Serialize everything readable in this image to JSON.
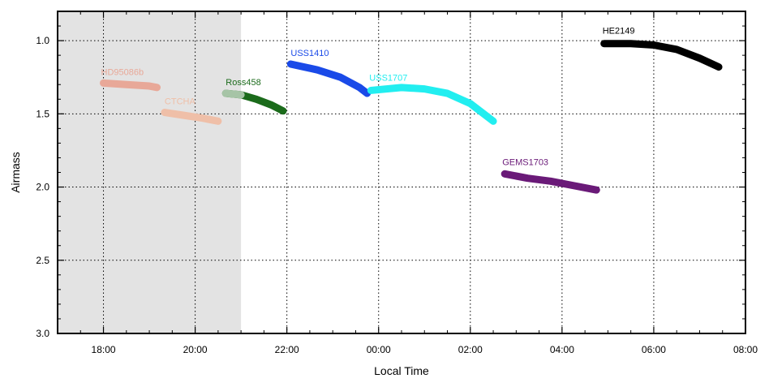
{
  "chart_data": {
    "type": "line",
    "xlabel": "Local Time",
    "ylabel": "Airmass",
    "x_unit": "hours",
    "xlim": [
      "17:00",
      "08:00"
    ],
    "ylim": [
      3.0,
      0.8
    ],
    "y_inverted": true,
    "grid": true,
    "grid_style": "dotted",
    "x_ticks": [
      "18:00",
      "20:00",
      "22:00",
      "00:00",
      "02:00",
      "04:00",
      "06:00",
      "08:00"
    ],
    "y_ticks": [
      "1.0",
      "1.5",
      "2.0",
      "2.5",
      "3.0"
    ],
    "shaded_region": {
      "x_start": "17:00",
      "x_end": "21:00",
      "color": "#e3e3e3"
    },
    "series": [
      {
        "name": "HD95086b",
        "color": "#e8a898",
        "x": [
          "18:00",
          "18:30",
          "19:00",
          "19:10"
        ],
        "y": [
          1.29,
          1.3,
          1.31,
          1.32
        ]
      },
      {
        "name": "CTCHA",
        "color": "#efbfa8",
        "x": [
          "19:20",
          "19:45",
          "20:10",
          "20:30"
        ],
        "y": [
          1.49,
          1.51,
          1.53,
          1.55
        ]
      },
      {
        "name": "Ross458",
        "color": "#1b6b1b",
        "x": [
          "20:40",
          "21:00",
          "21:20",
          "21:40",
          "21:55"
        ],
        "y": [
          1.36,
          1.37,
          1.4,
          1.44,
          1.48
        ]
      },
      {
        "name": "USS1410",
        "color": "#1a4ae8",
        "x": [
          "22:05",
          "22:40",
          "23:10",
          "23:35",
          "23:45"
        ],
        "y": [
          1.16,
          1.2,
          1.25,
          1.32,
          1.36
        ]
      },
      {
        "name": "USS1707",
        "color": "#22eef0",
        "x": [
          "23:50",
          "00:30",
          "01:00",
          "01:30",
          "02:00",
          "02:30"
        ],
        "y": [
          1.34,
          1.32,
          1.33,
          1.36,
          1.43,
          1.55
        ]
      },
      {
        "name": "GEMS1703",
        "color": "#6a1a78",
        "x": [
          "02:45",
          "03:15",
          "03:45",
          "04:15",
          "04:45"
        ],
        "y": [
          1.91,
          1.94,
          1.96,
          1.99,
          2.02
        ]
      },
      {
        "name": "HE2149",
        "color": "#000000",
        "x": [
          "04:55",
          "05:30",
          "06:00",
          "06:30",
          "07:00",
          "07:25"
        ],
        "y": [
          1.02,
          1.02,
          1.03,
          1.06,
          1.12,
          1.18
        ]
      }
    ]
  }
}
